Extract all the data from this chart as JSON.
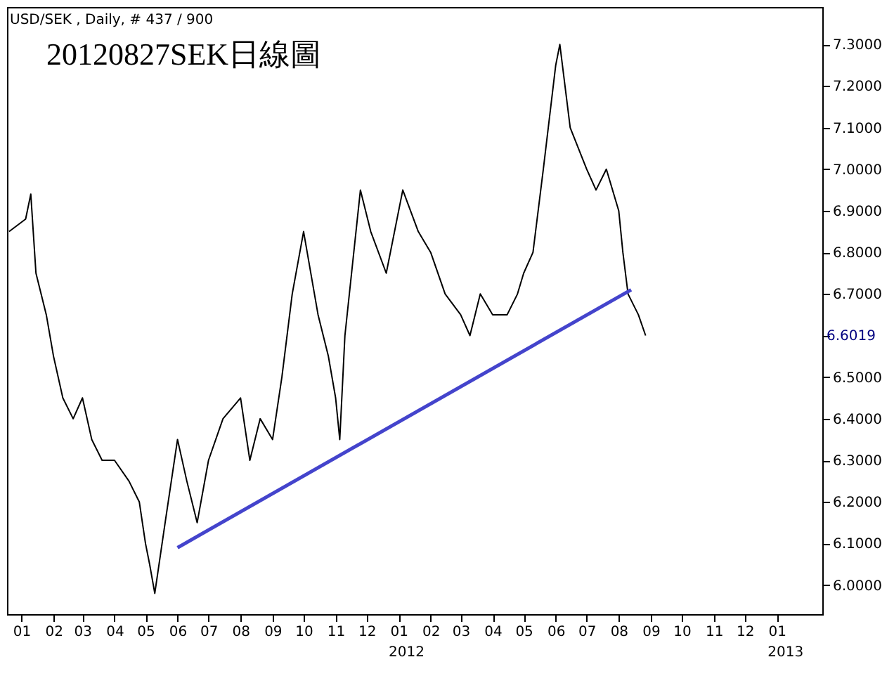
{
  "chart_data": {
    "type": "line",
    "title": "20120827SEK日線圖",
    "xlim": [
      "2010-12-18",
      "2013-02-14"
    ],
    "xticks": [
      {
        "value": "2011-01-01",
        "label": "01"
      },
      {
        "value": "2011-02-01",
        "label": "02"
      },
      {
        "value": "2011-03-01",
        "label": "03"
      },
      {
        "value": "2011-04-01",
        "label": "04"
      },
      {
        "value": "2011-05-01",
        "label": "05"
      },
      {
        "value": "2011-06-01",
        "label": "06"
      },
      {
        "value": "2011-07-01",
        "label": "07"
      },
      {
        "value": "2011-08-01",
        "label": "08"
      },
      {
        "value": "2011-09-01",
        "label": "09"
      },
      {
        "value": "2011-10-01",
        "label": "10"
      },
      {
        "value": "2011-11-01",
        "label": "11"
      },
      {
        "value": "2011-12-01",
        "label": "12"
      },
      {
        "value": "2012-01-01",
        "label": "01"
      },
      {
        "value": "2012-02-01",
        "label": "02"
      },
      {
        "value": "2012-03-01",
        "label": "03"
      },
      {
        "value": "2012-04-01",
        "label": "04"
      },
      {
        "value": "2012-05-01",
        "label": "05"
      },
      {
        "value": "2012-06-01",
        "label": "06"
      },
      {
        "value": "2012-07-01",
        "label": "07"
      },
      {
        "value": "2012-08-01",
        "label": "08"
      },
      {
        "value": "2012-09-01",
        "label": "09"
      },
      {
        "value": "2012-10-01",
        "label": "10"
      },
      {
        "value": "2012-11-01",
        "label": "11"
      },
      {
        "value": "2012-12-01",
        "label": "12"
      },
      {
        "value": "2013-01-01",
        "label": "01"
      }
    ],
    "ylim": [
      5.93,
      7.39
    ],
    "yticks": [
      {
        "value": 6.0,
        "label": "6.0000"
      },
      {
        "value": 6.1,
        "label": "6.1000"
      },
      {
        "value": 6.2,
        "label": "6.2000"
      },
      {
        "value": 6.3,
        "label": "6.3000"
      },
      {
        "value": 6.4,
        "label": "6.4000"
      },
      {
        "value": 6.5,
        "label": "6.5000"
      },
      {
        "value": 6.6,
        "label": null
      },
      {
        "value": 6.7,
        "label": "6.7000"
      },
      {
        "value": 6.8,
        "label": "6.8000"
      },
      {
        "value": 6.9,
        "label": "6.9000"
      },
      {
        "value": 7.0,
        "label": "7.0000"
      },
      {
        "value": 7.1,
        "label": "7.1000"
      },
      {
        "value": 7.2,
        "label": "7.2000"
      },
      {
        "value": 7.3,
        "label": "7.3000"
      }
    ],
    "grid": false,
    "marker": "none",
    "line_style": "solid",
    "series": [
      {
        "color": "#000000",
        "x": [
          "2010-12-20",
          "2011-01-05",
          "2011-01-10",
          "2011-01-15",
          "2011-01-25",
          "2011-02-01",
          "2011-02-10",
          "2011-02-20",
          "2011-03-01",
          "2011-03-10",
          "2011-03-20",
          "2011-04-01",
          "2011-04-15",
          "2011-04-25",
          "2011-05-01",
          "2011-05-05",
          "2011-05-10",
          "2011-05-20",
          "2011-06-01",
          "2011-06-10",
          "2011-06-20",
          "2011-07-01",
          "2011-07-15",
          "2011-08-01",
          "2011-08-10",
          "2011-08-20",
          "2011-09-01",
          "2011-09-10",
          "2011-09-20",
          "2011-10-01",
          "2011-10-15",
          "2011-10-25",
          "2011-11-01",
          "2011-11-05",
          "2011-11-10",
          "2011-11-25",
          "2011-12-05",
          "2011-12-20",
          "2012-01-05",
          "2012-01-20",
          "2012-02-01",
          "2012-02-15",
          "2012-03-01",
          "2012-03-10",
          "2012-03-20",
          "2012-04-01",
          "2012-04-15",
          "2012-04-25",
          "2012-05-01",
          "2012-05-10",
          "2012-05-20",
          "2012-06-01",
          "2012-06-05",
          "2012-06-15",
          "2012-07-01",
          "2012-07-10",
          "2012-07-20",
          "2012-08-01",
          "2012-08-05",
          "2012-08-10",
          "2012-08-20",
          "2012-08-27"
        ],
        "values": [
          6.85,
          6.88,
          6.94,
          6.75,
          6.65,
          6.55,
          6.45,
          6.4,
          6.45,
          6.35,
          6.3,
          6.3,
          6.25,
          6.2,
          6.1,
          6.05,
          5.98,
          6.15,
          6.35,
          6.25,
          6.15,
          6.3,
          6.4,
          6.45,
          6.3,
          6.4,
          6.35,
          6.5,
          6.7,
          6.85,
          6.65,
          6.55,
          6.45,
          6.35,
          6.6,
          6.95,
          6.85,
          6.75,
          6.95,
          6.85,
          6.8,
          6.7,
          6.65,
          6.6,
          6.7,
          6.65,
          6.65,
          6.7,
          6.75,
          6.8,
          7.0,
          7.25,
          7.3,
          7.1,
          7.0,
          6.95,
          7.0,
          6.9,
          6.8,
          6.7,
          6.65,
          6.6
        ]
      },
      {
        "type": "line",
        "color": "#4444cc",
        "x": [
          "2011-06-01",
          "2012-08-13"
        ],
        "values": [
          6.09,
          6.71
        ]
      }
    ],
    "annotations": [
      "USD/SEK , Daily, # 437 / 900",
      "6.6019",
      "2012",
      "2013"
    ]
  }
}
